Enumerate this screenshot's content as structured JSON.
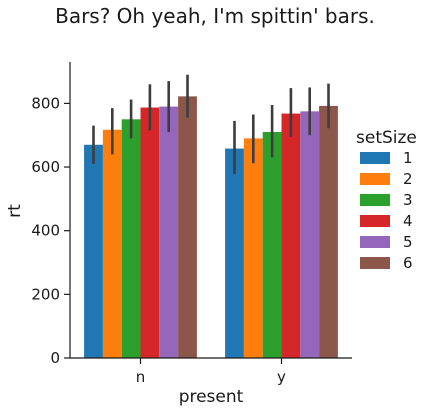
{
  "chart_data": {
    "type": "bar",
    "title": "Bars? Oh yeah, I'm spittin' bars.",
    "xlabel": "present",
    "ylabel": "rt",
    "categories": [
      "n",
      "y"
    ],
    "ylim": [
      0,
      930
    ],
    "yticks": [
      0,
      200,
      400,
      600,
      800
    ],
    "grid": false,
    "legend": {
      "title": "setSize",
      "placement": "right"
    },
    "series": [
      {
        "name": "1",
        "color": "#1f77b4",
        "values": [
          670,
          658
        ],
        "ci_low": [
          610,
          578
        ],
        "ci_high": [
          730,
          745
        ]
      },
      {
        "name": "2",
        "color": "#ff7f0e",
        "values": [
          717,
          690
        ],
        "ci_low": [
          640,
          612
        ],
        "ci_high": [
          785,
          765
        ]
      },
      {
        "name": "3",
        "color": "#2ca02c",
        "values": [
          750,
          710
        ],
        "ci_low": [
          690,
          630
        ],
        "ci_high": [
          812,
          795
        ]
      },
      {
        "name": "4",
        "color": "#d62728",
        "values": [
          787,
          768
        ],
        "ci_low": [
          715,
          695
        ],
        "ci_high": [
          860,
          848
        ]
      },
      {
        "name": "5",
        "color": "#9467bd",
        "values": [
          790,
          775
        ],
        "ci_low": [
          710,
          700
        ],
        "ci_high": [
          870,
          850
        ]
      },
      {
        "name": "6",
        "color": "#8c564b",
        "values": [
          822,
          792
        ],
        "ci_low": [
          755,
          722
        ],
        "ci_high": [
          890,
          862
        ]
      }
    ]
  }
}
